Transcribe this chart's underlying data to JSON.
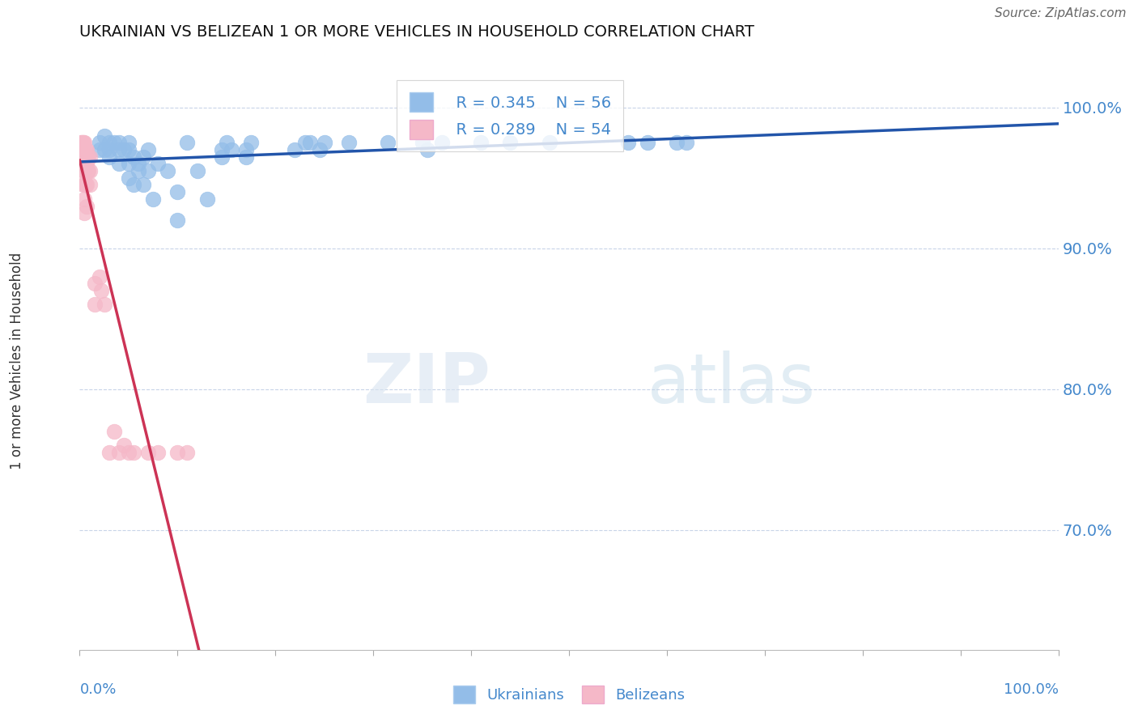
{
  "title": "UKRAINIAN VS BELIZEAN 1 OR MORE VEHICLES IN HOUSEHOLD CORRELATION CHART",
  "source": "Source: ZipAtlas.com",
  "ylabel": "1 or more Vehicles in Household",
  "watermark_zip": "ZIP",
  "watermark_atlas": "atlas",
  "legend_blue_r": "R = 0.345",
  "legend_blue_n": "N = 56",
  "legend_pink_r": "R = 0.289",
  "legend_pink_n": "N = 54",
  "legend_blue_label": "Ukrainians",
  "legend_pink_label": "Belizeans",
  "blue_color": "#93bde8",
  "pink_color": "#f5b8c8",
  "blue_line_color": "#2255aa",
  "pink_line_color": "#cc3355",
  "grid_color": "#c8d4e8",
  "axis_label_color": "#4488cc",
  "x_range": [
    0.0,
    1.0
  ],
  "y_range": [
    0.615,
    1.025
  ],
  "yticks": [
    0.7,
    0.8,
    0.9,
    1.0
  ],
  "ytick_labels": [
    "70.0%",
    "80.0%",
    "90.0%",
    "100.0%"
  ],
  "blue_x": [
    0.02,
    0.02,
    0.025,
    0.025,
    0.03,
    0.03,
    0.03,
    0.035,
    0.04,
    0.04,
    0.04,
    0.045,
    0.05,
    0.05,
    0.05,
    0.05,
    0.055,
    0.055,
    0.06,
    0.06,
    0.065,
    0.065,
    0.07,
    0.07,
    0.075,
    0.08,
    0.09,
    0.1,
    0.1,
    0.11,
    0.12,
    0.13,
    0.145,
    0.145,
    0.15,
    0.155,
    0.17,
    0.17,
    0.175,
    0.22,
    0.23,
    0.235,
    0.245,
    0.25,
    0.275,
    0.315,
    0.35,
    0.355,
    0.37,
    0.41,
    0.44,
    0.48,
    0.56,
    0.58,
    0.61,
    0.62
  ],
  "blue_y": [
    0.97,
    0.975,
    0.97,
    0.98,
    0.97,
    0.975,
    0.965,
    0.975,
    0.97,
    0.975,
    0.96,
    0.97,
    0.975,
    0.96,
    0.97,
    0.95,
    0.965,
    0.945,
    0.96,
    0.955,
    0.965,
    0.945,
    0.97,
    0.955,
    0.935,
    0.96,
    0.955,
    0.94,
    0.92,
    0.975,
    0.955,
    0.935,
    0.97,
    0.965,
    0.975,
    0.97,
    0.97,
    0.965,
    0.975,
    0.97,
    0.975,
    0.975,
    0.97,
    0.975,
    0.975,
    0.975,
    0.975,
    0.97,
    0.975,
    0.975,
    0.975,
    0.975,
    0.975,
    0.975,
    0.975,
    0.975
  ],
  "pink_x": [
    0.001,
    0.001,
    0.002,
    0.002,
    0.002,
    0.003,
    0.003,
    0.003,
    0.003,
    0.004,
    0.004,
    0.004,
    0.004,
    0.004,
    0.004,
    0.005,
    0.005,
    0.005,
    0.005,
    0.005,
    0.005,
    0.005,
    0.005,
    0.006,
    0.006,
    0.006,
    0.006,
    0.007,
    0.007,
    0.007,
    0.007,
    0.007,
    0.008,
    0.008,
    0.009,
    0.009,
    0.01,
    0.01,
    0.01,
    0.015,
    0.015,
    0.02,
    0.022,
    0.025,
    0.03,
    0.035,
    0.04,
    0.045,
    0.05,
    0.055,
    0.07,
    0.08,
    0.1,
    0.11
  ],
  "pink_y": [
    0.965,
    0.975,
    0.97,
    0.975,
    0.965,
    0.975,
    0.97,
    0.965,
    0.96,
    0.975,
    0.97,
    0.965,
    0.96,
    0.955,
    0.945,
    0.975,
    0.97,
    0.965,
    0.96,
    0.955,
    0.945,
    0.935,
    0.925,
    0.97,
    0.965,
    0.96,
    0.945,
    0.97,
    0.965,
    0.96,
    0.945,
    0.93,
    0.965,
    0.955,
    0.965,
    0.955,
    0.965,
    0.955,
    0.945,
    0.875,
    0.86,
    0.88,
    0.87,
    0.86,
    0.755,
    0.77,
    0.755,
    0.76,
    0.755,
    0.755,
    0.755,
    0.755,
    0.755,
    0.755
  ]
}
